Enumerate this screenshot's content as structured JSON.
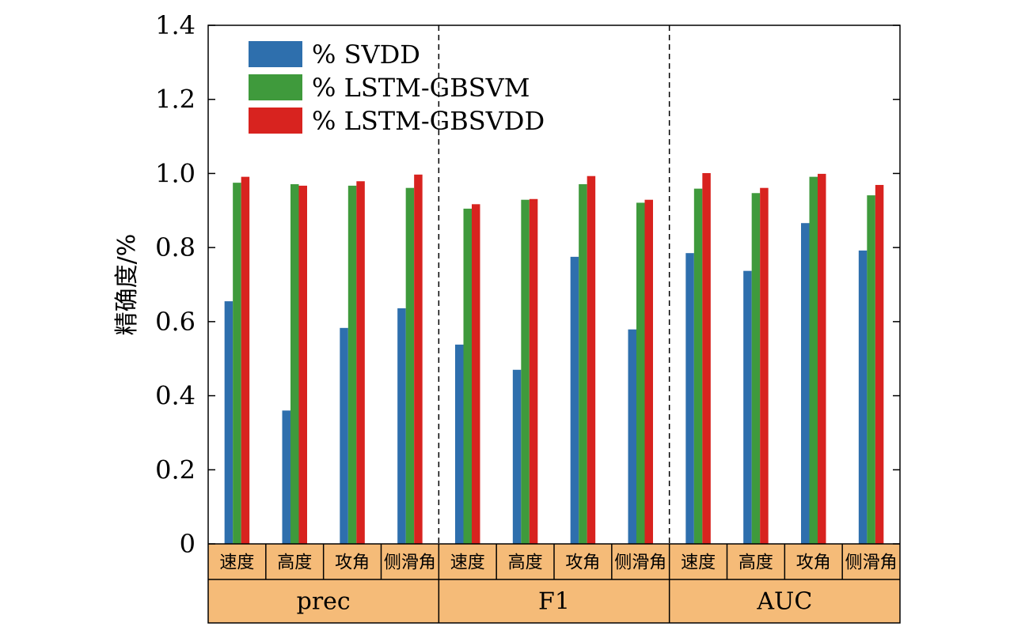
{
  "chart_data": {
    "type": "bar",
    "ylabel": "精确度/%",
    "ylim": [
      0,
      1.4
    ],
    "yticks": [
      "0",
      "0.2",
      "0.4",
      "0.6",
      "0.8",
      "1.0",
      "1.2",
      "1.4"
    ],
    "legend_position": "top-left",
    "groups": [
      "prec",
      "F1",
      "AUC"
    ],
    "categories": [
      "速度",
      "高度",
      "攻角",
      "侧滑角"
    ],
    "series": [
      {
        "name": "% SVDD",
        "color": "#2e6fad",
        "values": [
          [
            0.655,
            0.36,
            0.583,
            0.636
          ],
          [
            0.538,
            0.47,
            0.775,
            0.579
          ],
          [
            0.785,
            0.737,
            0.866,
            0.792
          ]
        ]
      },
      {
        "name": "% LSTM-GBSVM",
        "color": "#3f9a3c",
        "values": [
          [
            0.975,
            0.971,
            0.967,
            0.961
          ],
          [
            0.905,
            0.929,
            0.971,
            0.921
          ],
          [
            0.959,
            0.947,
            0.991,
            0.941
          ]
        ]
      },
      {
        "name": "% LSTM-GBSVDD",
        "color": "#d8231f",
        "values": [
          [
            0.991,
            0.967,
            0.979,
            0.997
          ],
          [
            0.917,
            0.931,
            0.993,
            0.929
          ],
          [
            1.001,
            0.961,
            0.999,
            0.969
          ]
        ]
      }
    ],
    "band_color": "#f5bb78"
  }
}
